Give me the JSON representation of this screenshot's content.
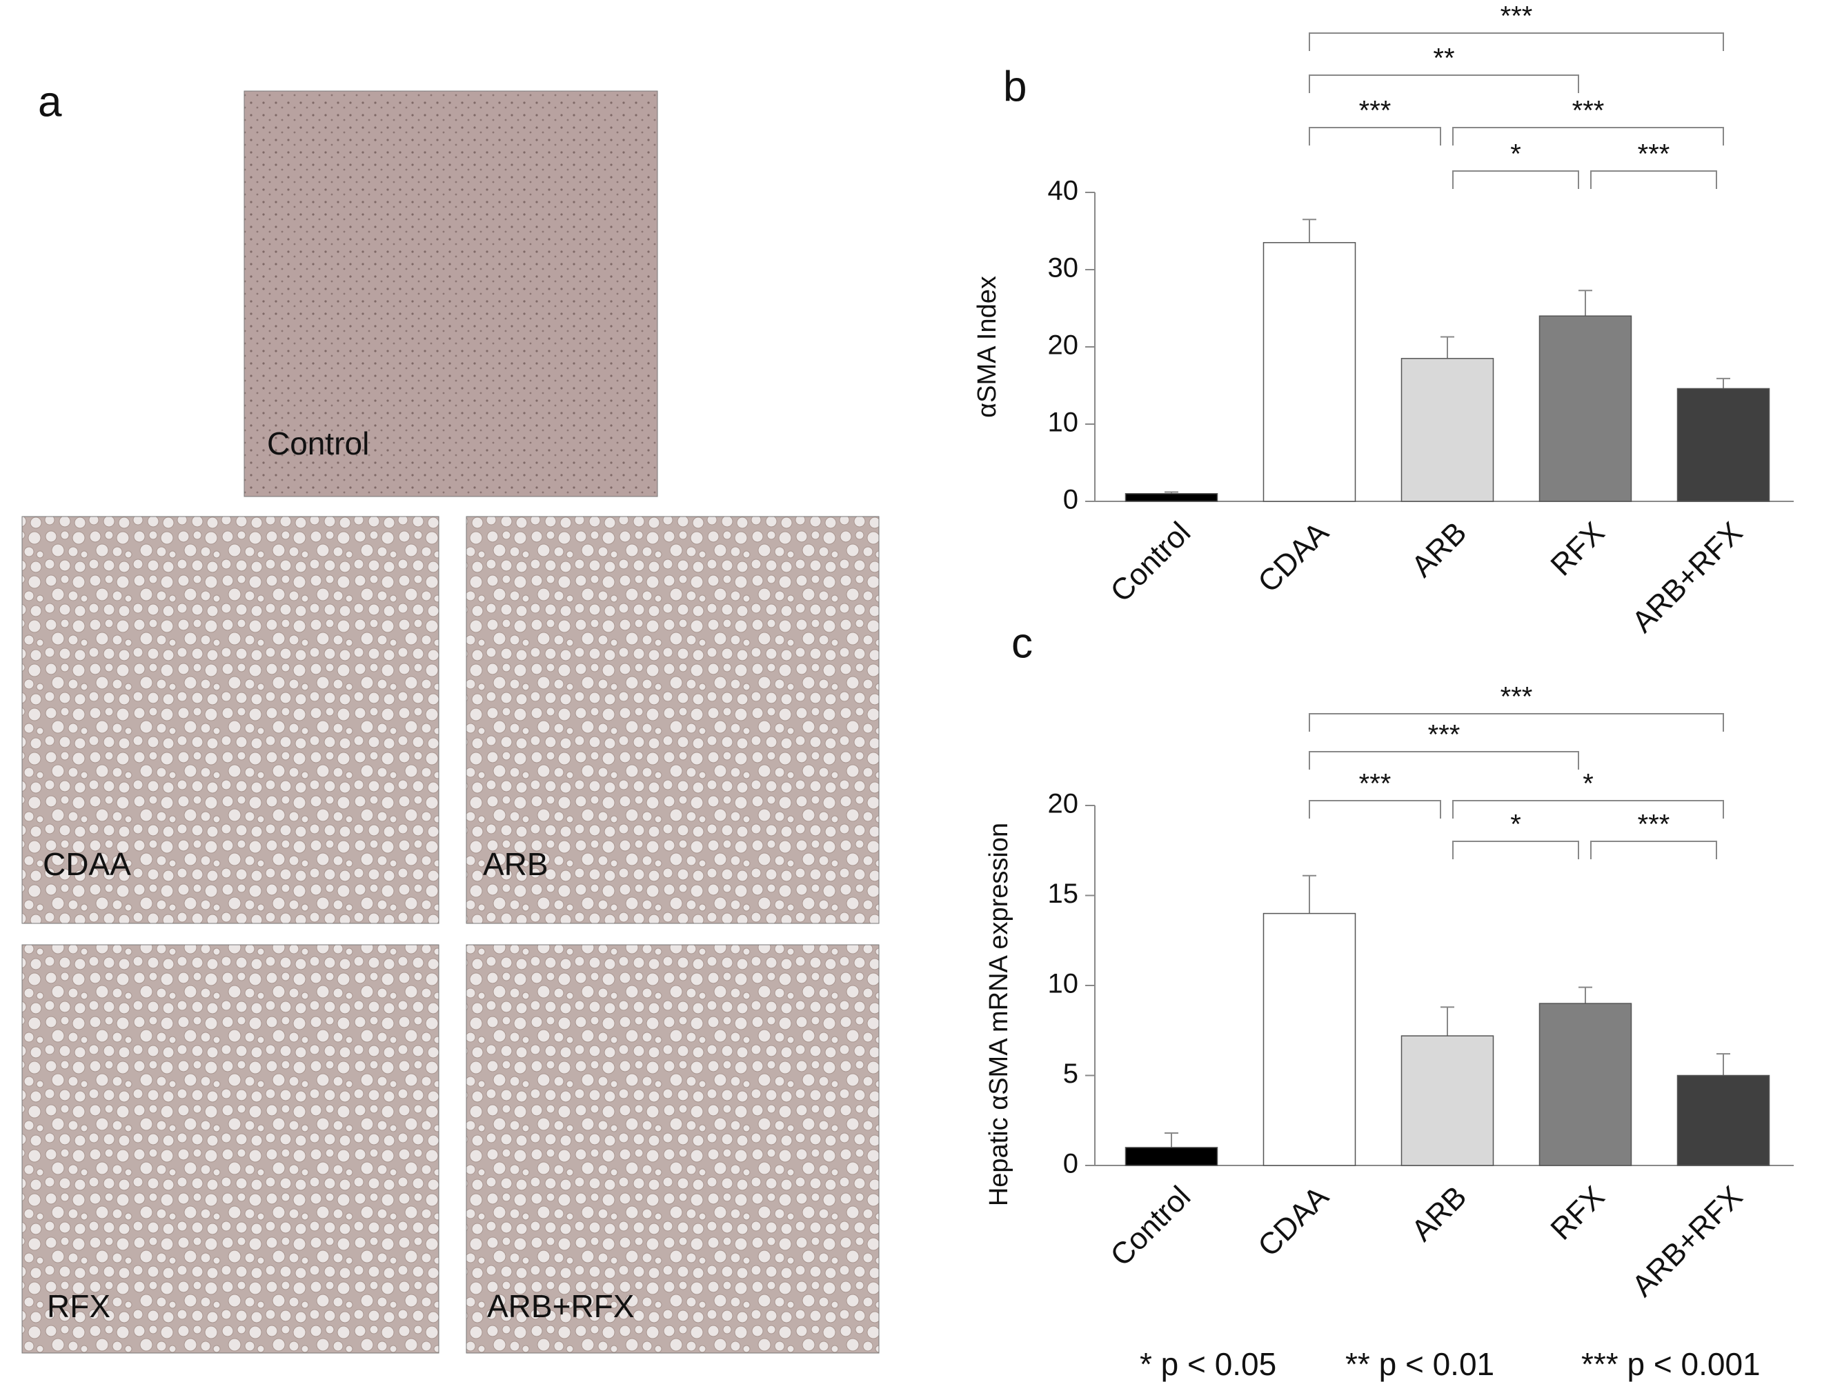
{
  "figure": {
    "panel_label": "a",
    "micrograph_labels": [
      "Control",
      "CDAA",
      "ARB",
      "RFX",
      "ARB+RFX"
    ],
    "legend": [
      "* p < 0.05",
      "** p < 0.01",
      "*** p < 0.001"
    ]
  },
  "chart_data": [
    {
      "type": "bar",
      "panel_label": "b",
      "y_label": "αSMA Index",
      "categories": [
        "Control",
        "CDAA",
        "ARB",
        "RFX",
        "ARB+RFX"
      ],
      "values": [
        1,
        33.5,
        18.5,
        24,
        14.6
      ],
      "errors": [
        0.2,
        3,
        2.8,
        3.3,
        1.3
      ],
      "colors": [
        "#000000",
        "#ffffff",
        "#d9d9d9",
        "#808080",
        "#404040"
      ],
      "ylim": [
        0,
        40
      ],
      "yticks": [
        0,
        10,
        20,
        30,
        40
      ],
      "annotations": [
        {
          "from": "CDAA",
          "to": "ARB+RFX",
          "label": "***"
        },
        {
          "from": "CDAA",
          "to": "RFX",
          "label": "**"
        },
        {
          "from": "CDAA",
          "to": "ARB",
          "label": "***"
        },
        {
          "from": "ARB",
          "to": "ARB+RFX",
          "label": "***"
        },
        {
          "from": "ARB",
          "to": "RFX",
          "label": "*"
        },
        {
          "from": "RFX",
          "to": "ARB+RFX",
          "label": "***"
        }
      ]
    },
    {
      "type": "bar",
      "panel_label": "c",
      "y_label": "Hepatic αSMA mRNA expression",
      "categories": [
        "Control",
        "CDAA",
        "ARB",
        "RFX",
        "ARB+RFX"
      ],
      "values": [
        1,
        14,
        7.2,
        9,
        5
      ],
      "errors": [
        0.8,
        2.1,
        1.6,
        0.9,
        1.2
      ],
      "colors": [
        "#000000",
        "#ffffff",
        "#d9d9d9",
        "#808080",
        "#404040"
      ],
      "ylim": [
        0,
        20
      ],
      "yticks": [
        0,
        5,
        10,
        15,
        20
      ],
      "annotations": [
        {
          "from": "CDAA",
          "to": "ARB+RFX",
          "label": "***"
        },
        {
          "from": "CDAA",
          "to": "RFX",
          "label": "***"
        },
        {
          "from": "CDAA",
          "to": "ARB",
          "label": "***"
        },
        {
          "from": "ARB",
          "to": "ARB+RFX",
          "label": "*"
        },
        {
          "from": "ARB",
          "to": "RFX",
          "label": "*"
        },
        {
          "from": "RFX",
          "to": "ARB+RFX",
          "label": "***"
        }
      ]
    }
  ]
}
